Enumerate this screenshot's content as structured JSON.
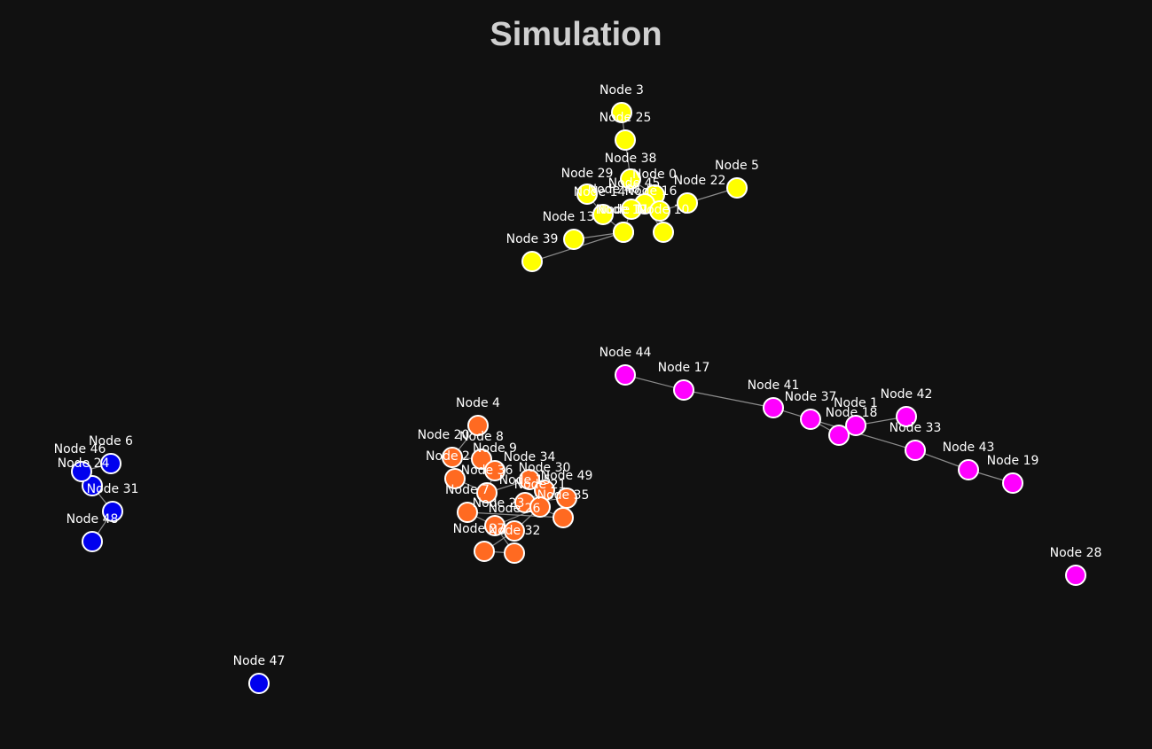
{
  "title": "Simulation",
  "colors": {
    "background": "#111111",
    "yellow": "#ffff00",
    "orange": "#ff6a21",
    "magenta": "#ff00ff",
    "blue": "#0000ee",
    "edge": "#8c8c8c"
  },
  "nodes": [
    {
      "id": 3,
      "label": "Node 3",
      "group": "yellow"
    },
    {
      "id": 25,
      "label": "Node 25",
      "group": "yellow"
    },
    {
      "id": 38,
      "label": "Node 38",
      "group": "yellow"
    },
    {
      "id": 0,
      "label": "Node 0",
      "group": "yellow"
    },
    {
      "id": 5,
      "label": "Node 5",
      "group": "yellow"
    },
    {
      "id": 29,
      "label": "Node 29",
      "group": "yellow"
    },
    {
      "id": 22,
      "label": "Node 22",
      "group": "yellow"
    },
    {
      "id": 45,
      "label": "Node 45",
      "group": "yellow"
    },
    {
      "id": 14,
      "label": "Node 14",
      "group": "yellow"
    },
    {
      "id": 16,
      "label": "Node 16",
      "group": "yellow"
    },
    {
      "id": 40,
      "label": "Node 40",
      "group": "yellow"
    },
    {
      "id": 10,
      "label": "Node 10",
      "group": "yellow"
    },
    {
      "id": 12,
      "label": "Node 12",
      "group": "yellow"
    },
    {
      "id": 39,
      "label": "Node 39",
      "group": "yellow"
    },
    {
      "id": 11,
      "label": "Node 11",
      "group": "yellow"
    },
    {
      "id": 13,
      "label": "Node 13",
      "group": "yellow"
    },
    {
      "id": 44,
      "label": "Node 44",
      "group": "magenta"
    },
    {
      "id": 17,
      "label": "Node 17",
      "group": "magenta"
    },
    {
      "id": 41,
      "label": "Node 41",
      "group": "magenta"
    },
    {
      "id": 37,
      "label": "Node 37",
      "group": "magenta"
    },
    {
      "id": 42,
      "label": "Node 42",
      "group": "magenta"
    },
    {
      "id": 1,
      "label": "Node 1",
      "group": "magenta"
    },
    {
      "id": 18,
      "label": "Node 18",
      "group": "magenta"
    },
    {
      "id": 33,
      "label": "Node 33",
      "group": "magenta"
    },
    {
      "id": 43,
      "label": "Node 43",
      "group": "magenta"
    },
    {
      "id": 19,
      "label": "Node 19",
      "group": "magenta"
    },
    {
      "id": 28,
      "label": "Node 28",
      "group": "magenta"
    },
    {
      "id": 4,
      "label": "Node 4",
      "group": "orange"
    },
    {
      "id": 20,
      "label": "Node 20",
      "group": "orange"
    },
    {
      "id": 8,
      "label": "Node 8",
      "group": "orange"
    },
    {
      "id": 9,
      "label": "Node 9",
      "group": "orange"
    },
    {
      "id": 2,
      "label": "Node 2",
      "group": "orange"
    },
    {
      "id": 34,
      "label": "Node 34",
      "group": "orange"
    },
    {
      "id": 36,
      "label": "Node 36",
      "group": "orange"
    },
    {
      "id": 30,
      "label": "Node 30",
      "group": "orange"
    },
    {
      "id": 49,
      "label": "Node 49",
      "group": "orange"
    },
    {
      "id": 15,
      "label": "Node 15",
      "group": "orange"
    },
    {
      "id": 7,
      "label": "Node 7",
      "group": "orange"
    },
    {
      "id": 35,
      "label": "Node 35",
      "group": "orange"
    },
    {
      "id": 23,
      "label": "Node 23",
      "group": "orange"
    },
    {
      "id": 21,
      "label": "Node 21",
      "group": "orange"
    },
    {
      "id": 26,
      "label": "Node 26",
      "group": "orange"
    },
    {
      "id": 27,
      "label": "Node 27",
      "group": "orange"
    },
    {
      "id": 32,
      "label": "Node 32",
      "group": "orange"
    },
    {
      "id": 6,
      "label": "Node 6",
      "group": "blue"
    },
    {
      "id": 24,
      "label": "Node 24",
      "group": "blue"
    },
    {
      "id": 46,
      "label": "Node 46",
      "group": "blue"
    },
    {
      "id": 31,
      "label": "Node 31",
      "group": "blue"
    },
    {
      "id": 48,
      "label": "Node 48",
      "group": "blue"
    },
    {
      "id": 47,
      "label": "Node 47",
      "group": "blue"
    }
  ],
  "edges": [
    [
      3,
      25
    ],
    [
      25,
      38
    ],
    [
      38,
      0
    ],
    [
      38,
      45
    ],
    [
      29,
      14
    ],
    [
      14,
      40
    ],
    [
      0,
      16
    ],
    [
      16,
      22
    ],
    [
      22,
      5
    ],
    [
      45,
      10
    ],
    [
      40,
      11
    ],
    [
      11,
      13
    ],
    [
      12,
      11
    ],
    [
      12,
      39
    ],
    [
      12,
      14
    ],
    [
      16,
      10
    ],
    [
      44,
      17
    ],
    [
      17,
      41
    ],
    [
      41,
      37
    ],
    [
      37,
      18
    ],
    [
      18,
      1
    ],
    [
      1,
      42
    ],
    [
      37,
      33
    ],
    [
      33,
      43
    ],
    [
      43,
      19
    ],
    [
      4,
      20
    ],
    [
      20,
      8
    ],
    [
      8,
      9
    ],
    [
      9,
      36
    ],
    [
      2,
      36
    ],
    [
      36,
      34
    ],
    [
      34,
      30
    ],
    [
      30,
      49
    ],
    [
      15,
      49
    ],
    [
      30,
      15
    ],
    [
      7,
      35
    ],
    [
      15,
      35
    ],
    [
      7,
      23
    ],
    [
      23,
      21
    ],
    [
      21,
      26
    ],
    [
      26,
      27
    ],
    [
      27,
      32
    ],
    [
      23,
      32
    ],
    [
      6,
      46
    ],
    [
      24,
      46
    ],
    [
      24,
      31
    ],
    [
      31,
      48
    ]
  ]
}
